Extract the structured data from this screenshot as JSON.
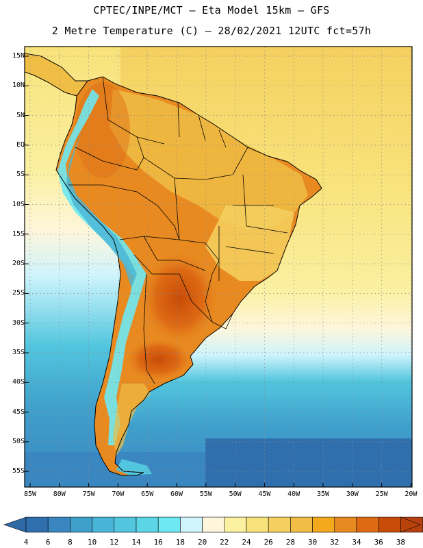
{
  "header": {
    "line1": "CPTEC/INPE/MCT –  Eta Model 15km – GFS",
    "line2": "2 Metre Temperature (C) – 28/02/2021 12UTC fct=57h"
  },
  "map": {
    "lat_labels": [
      "15N",
      "10N",
      "5N",
      "EQ",
      "5S",
      "10S",
      "15S",
      "20S",
      "25S",
      "30S",
      "35S",
      "40S",
      "45S",
      "50S",
      "55S"
    ],
    "lon_labels": [
      "85W",
      "80W",
      "75W",
      "70W",
      "65W",
      "60W",
      "55W",
      "50W",
      "45W",
      "40W",
      "35W",
      "30W",
      "25W",
      "20W"
    ]
  },
  "colorbar": {
    "labels": [
      "4",
      "6",
      "8",
      "10",
      "12",
      "14",
      "16",
      "18",
      "20",
      "22",
      "24",
      "26",
      "28",
      "30",
      "32",
      "34",
      "36",
      "38"
    ],
    "colors": [
      "#2f6fae",
      "#3a86c0",
      "#40a0cc",
      "#48b4d6",
      "#52c6de",
      "#5cd6e6",
      "#6ee8f2",
      "#cff4fc",
      "#fdf6dc",
      "#fbf0a0",
      "#f8e27a",
      "#f5d060",
      "#f0bd45",
      "#f4a81c",
      "#e88a20",
      "#de6a14",
      "#c84c08",
      "#b84010"
    ],
    "under_color": "#2f6aa6",
    "over_color": "#b8440c"
  },
  "colors": {
    "ocean_warm": "#f8e27a",
    "ocean_mid": "#fbf0a0",
    "ocean_cool": "#52c6de",
    "ocean_cold": "#3a86c0",
    "land_hot": "#e88a20",
    "land_very_hot": "#c84c08",
    "andes": "#6ee8f2",
    "border": "#000000"
  }
}
